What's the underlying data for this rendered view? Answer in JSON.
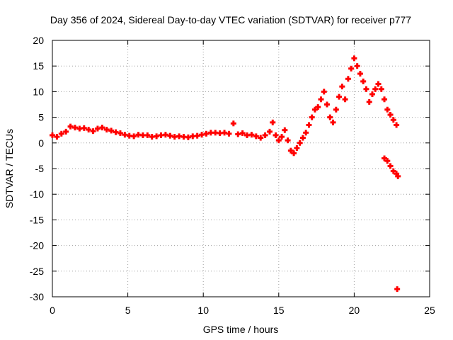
{
  "chart_data": {
    "type": "scatter",
    "title": "Day 356 of 2024, Sidereal Day-to-day VTEC variation (SDTVAR) for receiver p777",
    "xlabel": "GPS time / hours",
    "ylabel": "SDTVAR / TECUs",
    "xlim": [
      0,
      25
    ],
    "ylim": [
      -30,
      20
    ],
    "xticks": [
      0,
      5,
      10,
      15,
      20,
      25
    ],
    "yticks": [
      20,
      15,
      10,
      5,
      0,
      -5,
      -10,
      -15,
      -20,
      -25,
      -30
    ],
    "grid": true,
    "marker": "plus",
    "series": [
      {
        "name": "SDTVAR",
        "color": "#ff0000",
        "x": [
          0.0,
          0.3,
          0.6,
          0.9,
          1.2,
          1.5,
          1.8,
          2.1,
          2.4,
          2.7,
          3.0,
          3.3,
          3.6,
          3.9,
          4.2,
          4.5,
          4.8,
          5.1,
          5.4,
          5.7,
          6.0,
          6.3,
          6.6,
          6.9,
          7.2,
          7.5,
          7.8,
          8.1,
          8.4,
          8.7,
          9.0,
          9.3,
          9.6,
          9.9,
          10.2,
          10.5,
          10.8,
          11.1,
          11.4,
          11.7,
          12.0,
          12.3,
          12.6,
          12.9,
          13.2,
          13.5,
          13.8,
          14.1,
          14.4,
          14.6,
          14.8,
          15.0,
          15.2,
          15.4,
          15.6,
          15.8,
          16.0,
          16.2,
          16.4,
          16.6,
          16.8,
          17.0,
          17.2,
          17.4,
          17.6,
          17.8,
          18.0,
          18.2,
          18.4,
          18.6,
          18.8,
          19.0,
          19.2,
          19.4,
          19.6,
          19.8,
          20.0,
          20.2,
          20.4,
          20.6,
          20.8,
          21.0,
          21.2,
          21.4,
          21.6,
          21.8,
          22.0,
          22.2,
          22.4,
          22.6,
          22.8,
          22.0,
          22.2,
          22.4,
          22.6,
          22.8,
          22.9,
          22.85
        ],
        "y": [
          1.5,
          1.2,
          1.8,
          2.2,
          3.2,
          3.0,
          2.8,
          2.9,
          2.6,
          2.3,
          2.8,
          3.0,
          2.6,
          2.4,
          2.1,
          1.9,
          1.6,
          1.4,
          1.3,
          1.6,
          1.5,
          1.5,
          1.2,
          1.3,
          1.5,
          1.6,
          1.4,
          1.2,
          1.3,
          1.2,
          1.1,
          1.3,
          1.4,
          1.6,
          1.8,
          2.0,
          2.0,
          1.9,
          2.0,
          1.8,
          3.8,
          1.7,
          1.9,
          1.5,
          1.6,
          1.3,
          1.0,
          1.5,
          2.2,
          4.0,
          1.5,
          0.5,
          1.2,
          2.5,
          0.5,
          -1.5,
          -2.0,
          -1.0,
          0.0,
          1.0,
          2.0,
          3.5,
          5.0,
          6.5,
          7.0,
          8.5,
          10.0,
          7.5,
          5.0,
          4.0,
          6.5,
          9.0,
          11.0,
          8.5,
          12.5,
          14.5,
          16.5,
          15.0,
          13.5,
          12.0,
          10.5,
          8.0,
          9.5,
          10.5,
          11.5,
          10.5,
          8.5,
          6.5,
          5.5,
          4.5,
          3.5,
          -3.0,
          -3.5,
          -4.5,
          -5.5,
          -6.0,
          -6.5,
          -28.5
        ]
      }
    ]
  }
}
